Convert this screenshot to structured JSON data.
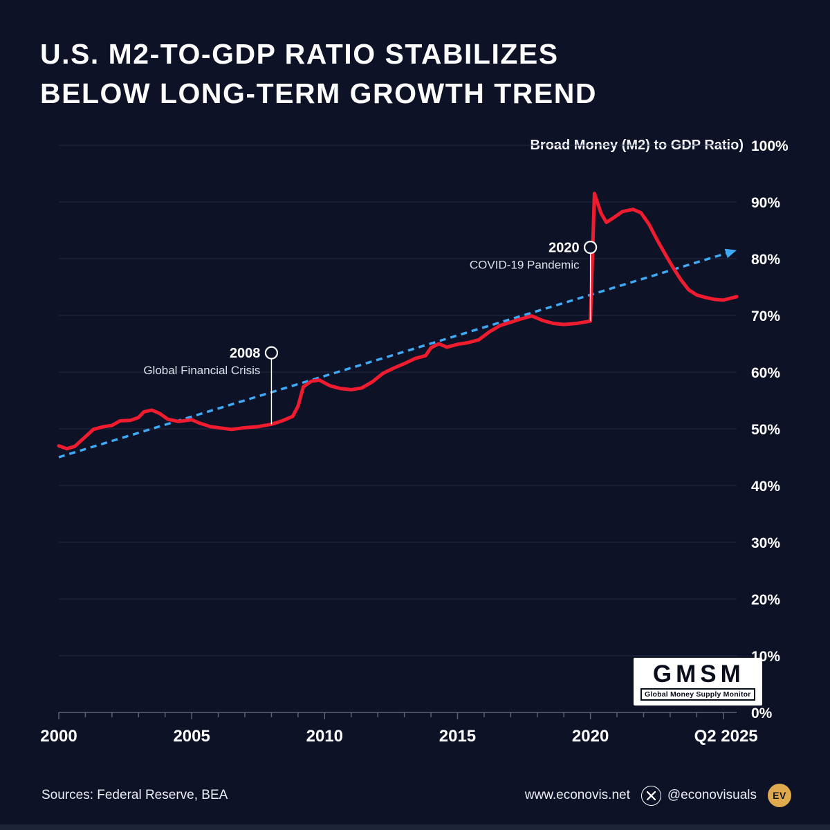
{
  "title": {
    "line1": "U.S. M2-TO-GDP RATIO STABILIZES",
    "line2": "BELOW LONG-TERM GROWTH TREND"
  },
  "chart_data": {
    "type": "line",
    "title": "Broad Money (M2) to GDP Ratio)",
    "xlim": [
      2000,
      2025.5
    ],
    "ylim": [
      0,
      100
    ],
    "yticks": [
      0,
      10,
      20,
      30,
      40,
      50,
      60,
      70,
      80,
      90,
      100
    ],
    "ytick_suffix": "%",
    "xticks": [
      {
        "pos": 2000,
        "label": "2000"
      },
      {
        "pos": 2005,
        "label": "2005"
      },
      {
        "pos": 2010,
        "label": "2010"
      },
      {
        "pos": 2015,
        "label": "2015"
      },
      {
        "pos": 2020,
        "label": "2020"
      },
      {
        "pos": 2025.1,
        "label": "Q2 2025"
      }
    ],
    "grid": true,
    "legend_position": "none",
    "series": [
      {
        "name": "M2 to GDP ratio",
        "color": "#ee1c2e",
        "points": [
          [
            2000,
            47
          ],
          [
            2000.3,
            46.5
          ],
          [
            2000.6,
            46.9
          ],
          [
            2001,
            48.6
          ],
          [
            2001.3,
            49.9
          ],
          [
            2001.7,
            50.4
          ],
          [
            2002,
            50.6
          ],
          [
            2002.3,
            51.4
          ],
          [
            2002.7,
            51.5
          ],
          [
            2003,
            52.0
          ],
          [
            2003.2,
            53.0
          ],
          [
            2003.5,
            53.3
          ],
          [
            2003.8,
            52.7
          ],
          [
            2004.1,
            51.7
          ],
          [
            2004.5,
            51.3
          ],
          [
            2005,
            51.6
          ],
          [
            2005.3,
            51.0
          ],
          [
            2005.7,
            50.4
          ],
          [
            2006,
            50.2
          ],
          [
            2006.5,
            49.9
          ],
          [
            2007,
            50.2
          ],
          [
            2007.5,
            50.4
          ],
          [
            2008,
            50.8
          ],
          [
            2008.4,
            51.4
          ],
          [
            2008.8,
            52.2
          ],
          [
            2009,
            54.0
          ],
          [
            2009.2,
            57.4
          ],
          [
            2009.5,
            58.4
          ],
          [
            2009.8,
            58.6
          ],
          [
            2010.2,
            57.6
          ],
          [
            2010.6,
            57.1
          ],
          [
            2011,
            56.9
          ],
          [
            2011.4,
            57.2
          ],
          [
            2011.8,
            58.3
          ],
          [
            2012.2,
            59.8
          ],
          [
            2012.6,
            60.7
          ],
          [
            2013,
            61.5
          ],
          [
            2013.4,
            62.4
          ],
          [
            2013.8,
            62.9
          ],
          [
            2014,
            64.3
          ],
          [
            2014.3,
            65.0
          ],
          [
            2014.6,
            64.4
          ],
          [
            2015,
            64.9
          ],
          [
            2015.4,
            65.2
          ],
          [
            2015.8,
            65.7
          ],
          [
            2016.2,
            67.1
          ],
          [
            2016.6,
            68.2
          ],
          [
            2017,
            68.8
          ],
          [
            2017.4,
            69.4
          ],
          [
            2017.8,
            69.9
          ],
          [
            2018.2,
            69.1
          ],
          [
            2018.6,
            68.6
          ],
          [
            2019,
            68.4
          ],
          [
            2019.5,
            68.6
          ],
          [
            2020,
            69.0
          ],
          [
            2020.15,
            91.5
          ],
          [
            2020.4,
            88.0
          ],
          [
            2020.6,
            86.4
          ],
          [
            2020.9,
            87.3
          ],
          [
            2021.2,
            88.3
          ],
          [
            2021.6,
            88.7
          ],
          [
            2021.9,
            88.1
          ],
          [
            2022.2,
            86.1
          ],
          [
            2022.5,
            83.4
          ],
          [
            2022.8,
            80.9
          ],
          [
            2023.1,
            78.5
          ],
          [
            2023.4,
            76.3
          ],
          [
            2023.7,
            74.5
          ],
          [
            2024,
            73.6
          ],
          [
            2024.3,
            73.2
          ],
          [
            2024.7,
            72.8
          ],
          [
            2025,
            72.7
          ],
          [
            2025.5,
            73.3
          ]
        ]
      }
    ],
    "trend": {
      "name": "Long-term growth trend",
      "color": "#3fa9f5",
      "style": "dashed",
      "dash": [
        9,
        7
      ],
      "points": [
        [
          2000,
          45
        ],
        [
          2025.5,
          81.5
        ]
      ]
    },
    "annotations": [
      {
        "year": 2008,
        "title": "2008",
        "text": "Global Financial Crisis",
        "marker_value": 63.4
      },
      {
        "year": 2020,
        "title": "2020",
        "text": "COVID-19 Pandemic",
        "marker_value": 82
      }
    ]
  },
  "badge": {
    "title": "GMSM",
    "subtitle": "Global Money Supply Monitor"
  },
  "footer": {
    "sources": "Sources: Federal Reserve, BEA",
    "website": "www.econovis.net",
    "handle": "@econovisuals",
    "x_icon": "x-logo",
    "logo_monogram": "EV"
  },
  "colors": {
    "background": "#0d1226",
    "red_line": "#ee1c2e",
    "trend_blue": "#3fa9f5",
    "grid": "#222b47",
    "text": "#ffffff",
    "gold": "#dfa94e"
  }
}
